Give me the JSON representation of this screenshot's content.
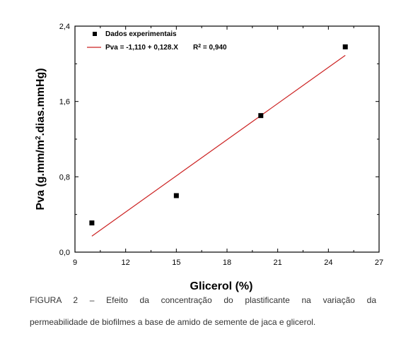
{
  "chart_data": {
    "type": "scatter",
    "title": "",
    "xlabel": "Glicerol (%)",
    "ylabel": "Pva (g.mm/m2.dias.mmHg)",
    "ylabel_parts": {
      "before": "Pva (g.mm/m",
      "sup": "2",
      "after": ".dias.mmHg)"
    },
    "xlim": [
      9,
      27
    ],
    "ylim": [
      0.0,
      2.4
    ],
    "xticks": [
      "9",
      "12",
      "15",
      "18",
      "21",
      "24",
      "27"
    ],
    "xtick_values": [
      9,
      12,
      15,
      18,
      21,
      24,
      27
    ],
    "yticks": [
      "0,0",
      "0,8",
      "1,6",
      "2,4"
    ],
    "ytick_values": [
      0.0,
      0.8,
      1.6,
      2.4
    ],
    "series": [
      {
        "name": "Dados experimentais",
        "kind": "points",
        "color": "#000000",
        "x": [
          10,
          15,
          20,
          25
        ],
        "y": [
          0.31,
          0.6,
          1.45,
          2.18
        ]
      },
      {
        "name": "Pva = -1,110 + 0,128.X",
        "kind": "fit-line",
        "color": "#cc2222",
        "x": [
          10,
          25
        ],
        "y": [
          0.17,
          2.09
        ]
      }
    ],
    "legend": {
      "position": "top-left",
      "points_label": "Dados experimentais",
      "line_label": "Pva = -1,110 + 0,128.X",
      "r2_prefix": "R",
      "r2_sup": "2",
      "r2_value": " = 0,940"
    },
    "grid": false
  },
  "caption": {
    "line1": "FIGURA 2 – Efeito da concentração do plastificante na variação da",
    "line2": "permeabilidade de biofilmes a base de amido de semente de jaca e glicerol."
  }
}
